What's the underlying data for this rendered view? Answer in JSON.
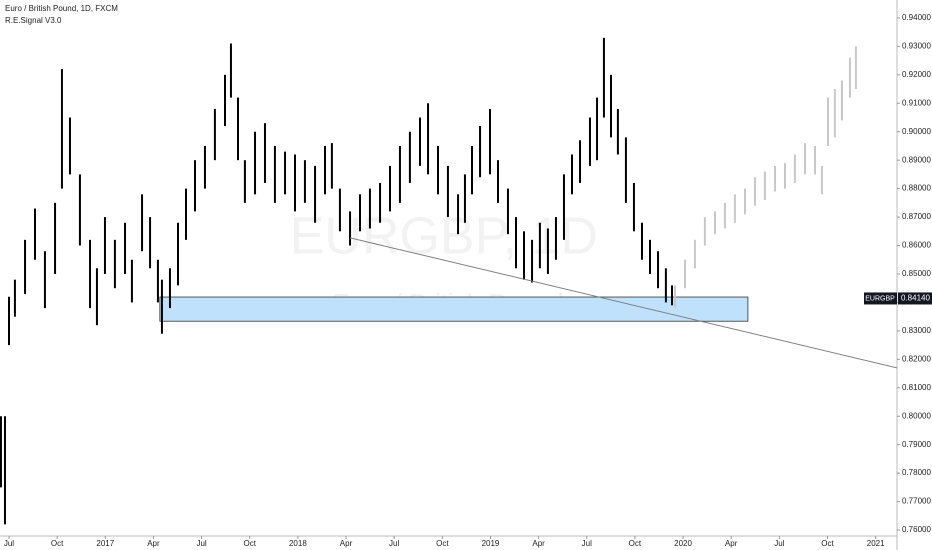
{
  "chart_data": {
    "type": "ohlc",
    "title": "Euro / British Pound, 1D, FXCM",
    "subtitle": "R.E.Signal V3.0",
    "watermark": "EURGBP, 1D",
    "watermark_subtitle": "Euro / British Pound",
    "xlim": [
      -0.56,
      55.33
    ],
    "ylim": [
      0.7565,
      0.9463
    ],
    "xticks": [
      {
        "value": 0,
        "label": "Jul"
      },
      {
        "value": 3,
        "label": "Oct"
      },
      {
        "value": 6,
        "label": "2017"
      },
      {
        "value": 9,
        "label": "Apr"
      },
      {
        "value": 12,
        "label": "Jul"
      },
      {
        "value": 15,
        "label": "Oct"
      },
      {
        "value": 18,
        "label": "2018"
      },
      {
        "value": 21,
        "label": "Apr"
      },
      {
        "value": 24,
        "label": "Jul"
      },
      {
        "value": 27,
        "label": "Oct"
      },
      {
        "value": 30,
        "label": "2019"
      },
      {
        "value": 33,
        "label": "Apr"
      },
      {
        "value": 36,
        "label": "Jul"
      },
      {
        "value": 39,
        "label": "Oct"
      },
      {
        "value": 42,
        "label": "2020"
      },
      {
        "value": 45,
        "label": "Apr"
      },
      {
        "value": 48,
        "label": "Jul"
      },
      {
        "value": 51,
        "label": "Oct"
      },
      {
        "value": 54,
        "label": "2021"
      }
    ],
    "yticks": [
      {
        "value": 0.76,
        "label": "0.76000"
      },
      {
        "value": 0.77,
        "label": "0.77000"
      },
      {
        "value": 0.78,
        "label": "0.78000"
      },
      {
        "value": 0.79,
        "label": "0.79000"
      },
      {
        "value": 0.8,
        "label": "0.80000"
      },
      {
        "value": 0.81,
        "label": "0.81000"
      },
      {
        "value": 0.82,
        "label": "0.82000"
      },
      {
        "value": 0.83,
        "label": "0.83000"
      },
      {
        "value": 0.84,
        "label": "0.84000"
      },
      {
        "value": 0.85,
        "label": "0.85000"
      },
      {
        "value": 0.86,
        "label": "0.86000"
      },
      {
        "value": 0.87,
        "label": "0.87000"
      },
      {
        "value": 0.88,
        "label": "0.88000"
      },
      {
        "value": 0.89,
        "label": "0.89000"
      },
      {
        "value": 0.9,
        "label": "0.90000"
      },
      {
        "value": 0.91,
        "label": "0.91000"
      },
      {
        "value": 0.92,
        "label": "0.92000"
      },
      {
        "value": 0.93,
        "label": "0.93000"
      },
      {
        "value": 0.94,
        "label": "0.94000"
      }
    ],
    "series": [
      {
        "color": "#000000",
        "x": [
          -0.5,
          -0.25,
          0,
          0.37,
          1.0,
          1.62,
          2.24,
          2.87,
          3.3,
          3.8,
          4.42,
          5.05,
          5.48,
          5.98,
          6.6,
          7.23,
          7.66,
          8.29,
          8.79,
          9.28,
          9.53,
          10.03,
          10.53,
          11.03,
          11.59,
          12.21,
          12.83,
          13.46,
          13.83,
          14.27,
          14.7,
          15.33,
          15.95,
          16.57,
          17.2,
          17.82,
          18.44,
          19.07,
          19.69,
          20.12,
          20.62,
          21.25,
          21.87,
          22.49,
          23.12,
          23.74,
          24.36,
          24.98,
          25.61,
          26.11,
          26.73,
          27.35,
          27.98,
          28.41,
          28.85,
          29.35,
          29.97,
          30.47,
          31.09,
          31.59,
          32.09,
          32.59,
          33.08,
          33.58,
          34.08,
          34.58,
          35.08,
          35.58,
          36.2,
          36.64,
          37.07,
          37.51,
          37.94,
          38.44,
          38.94,
          39.44,
          39.94,
          40.44,
          40.93,
          41.31
        ],
        "high": [
          0.8,
          0.8,
          0.842,
          0.848,
          0.862,
          0.873,
          0.858,
          0.875,
          0.922,
          0.905,
          0.885,
          0.862,
          0.852,
          0.87,
          0.862,
          0.868,
          0.855,
          0.878,
          0.87,
          0.855,
          0.848,
          0.852,
          0.868,
          0.88,
          0.89,
          0.895,
          0.908,
          0.92,
          0.931,
          0.912,
          0.89,
          0.9,
          0.903,
          0.895,
          0.893,
          0.892,
          0.89,
          0.888,
          0.895,
          0.896,
          0.88,
          0.872,
          0.878,
          0.88,
          0.882,
          0.888,
          0.895,
          0.9,
          0.905,
          0.91,
          0.895,
          0.888,
          0.878,
          0.885,
          0.895,
          0.902,
          0.908,
          0.89,
          0.88,
          0.87,
          0.865,
          0.862,
          0.868,
          0.866,
          0.87,
          0.885,
          0.892,
          0.897,
          0.905,
          0.912,
          0.933,
          0.92,
          0.908,
          0.898,
          0.882,
          0.868,
          0.862,
          0.858,
          0.852,
          0.846
        ],
        "low": [
          0.775,
          0.762,
          0.825,
          0.835,
          0.843,
          0.855,
          0.838,
          0.85,
          0.88,
          0.885,
          0.86,
          0.838,
          0.832,
          0.85,
          0.845,
          0.85,
          0.84,
          0.858,
          0.852,
          0.84,
          0.829,
          0.838,
          0.846,
          0.862,
          0.872,
          0.88,
          0.89,
          0.902,
          0.912,
          0.89,
          0.875,
          0.878,
          0.882,
          0.875,
          0.878,
          0.872,
          0.875,
          0.868,
          0.878,
          0.88,
          0.865,
          0.86,
          0.865,
          0.866,
          0.868,
          0.872,
          0.875,
          0.882,
          0.888,
          0.885,
          0.878,
          0.87,
          0.864,
          0.868,
          0.878,
          0.884,
          0.885,
          0.875,
          0.864,
          0.852,
          0.848,
          0.847,
          0.852,
          0.85,
          0.855,
          0.862,
          0.878,
          0.882,
          0.888,
          0.89,
          0.905,
          0.898,
          0.892,
          0.875,
          0.865,
          0.855,
          0.85,
          0.845,
          0.84,
          0.839
        ]
      },
      {
        "color": "#c8c8c8",
        "x": [
          41.5,
          42.12,
          42.74,
          43.36,
          43.99,
          44.61,
          45.23,
          45.86,
          46.48,
          47.1,
          47.73,
          48.35,
          48.97,
          49.6,
          50.22,
          50.65,
          51.03,
          51.46,
          51.9,
          52.4,
          52.77
        ],
        "high": [
          0.846,
          0.855,
          0.862,
          0.87,
          0.872,
          0.875,
          0.878,
          0.88,
          0.884,
          0.886,
          0.888,
          0.889,
          0.892,
          0.896,
          0.895,
          0.888,
          0.912,
          0.915,
          0.918,
          0.926,
          0.93
        ],
        "low": [
          0.838,
          0.845,
          0.852,
          0.86,
          0.864,
          0.866,
          0.868,
          0.871,
          0.874,
          0.876,
          0.879,
          0.88,
          0.882,
          0.885,
          0.885,
          0.878,
          0.895,
          0.898,
          0.904,
          0.912,
          0.915
        ]
      }
    ],
    "zone": {
      "x": [
        9.4,
        46.04
      ],
      "y": [
        0.8334,
        0.8419
      ],
      "color": "#bfe1fb"
    },
    "trendline": {
      "x": [
        21.25,
        55.33
      ],
      "y": [
        0.8627,
        0.817
      ],
      "color": "#808080"
    },
    "last_price": {
      "label": "EURGBP",
      "value": 0.8414,
      "value_label": "0.84140"
    }
  }
}
